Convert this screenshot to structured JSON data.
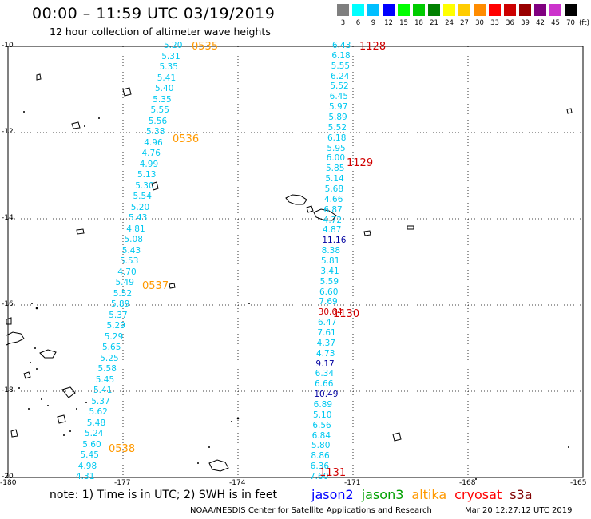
{
  "header": {
    "title": "00:00 – 11:59 UTC 03/19/2019",
    "subtitle": "12 hour collection of altimeter wave heights"
  },
  "legend": {
    "unit": "(ft)",
    "bins": [
      {
        "label": "3",
        "color": "#7f7f7f"
      },
      {
        "label": "6",
        "color": "#00ffff"
      },
      {
        "label": "9",
        "color": "#00bfff"
      },
      {
        "label": "12",
        "color": "#0000ff"
      },
      {
        "label": "15",
        "color": "#00ff00"
      },
      {
        "label": "18",
        "color": "#00cc00"
      },
      {
        "label": "21",
        "color": "#008000"
      },
      {
        "label": "24",
        "color": "#ffff00"
      },
      {
        "label": "27",
        "color": "#ffcc00"
      },
      {
        "label": "30",
        "color": "#ff8c00"
      },
      {
        "label": "33",
        "color": "#ff0000"
      },
      {
        "label": "36",
        "color": "#cc0000"
      },
      {
        "label": "39",
        "color": "#990000"
      },
      {
        "label": "42",
        "color": "#800080"
      },
      {
        "label": "45",
        "color": "#cc33cc"
      },
      {
        "label": "70",
        "color": "#000000"
      }
    ]
  },
  "map": {
    "lat_labels": [
      "-10",
      "-12",
      "-14",
      "-16",
      "-18",
      "-20"
    ],
    "lon_labels": [
      "-180",
      "-177",
      "-174",
      "-171",
      "-168",
      "-165"
    ]
  },
  "colors": {
    "cyan": "#00c8f0",
    "navy": "#0000a0",
    "red": "#d00000",
    "orange": "#ff9900"
  },
  "tracks": [
    {
      "satellite": "altika",
      "time_color": "#ff9900",
      "times": [
        "0535",
        "0536",
        "0537",
        "0538"
      ],
      "swh": [
        "5.20",
        "5.31",
        "5.35",
        "5.41",
        "5.40",
        "5.35",
        "5.55",
        "5.56",
        "5.38",
        "4.96",
        "4.76",
        "4.99",
        "5.13",
        "5.30",
        "5.54",
        "5.20",
        "5.43",
        "4.81",
        "5.08",
        "5.43",
        "5.53",
        "4.70",
        "5.49",
        "5.52",
        "5.89",
        "5.37",
        "5.29",
        "5.29",
        "5.65",
        "5.25",
        "5.58",
        "5.45",
        "5.41",
        "5.37",
        "5.62",
        "5.48",
        "5.24",
        "5.60",
        "5.45",
        "4.98",
        "4.31"
      ]
    },
    {
      "satellite": "cryosat",
      "time_color": "#d00000",
      "times": [
        "1128",
        "1129",
        "1130",
        "1131"
      ],
      "swh": [
        "6.43",
        "6.18",
        "5.55",
        "6.24",
        "5.52",
        "6.45",
        "5.97",
        "5.89",
        "5.52",
        "6.18",
        "5.95",
        "6.00",
        "5.85",
        "5.14",
        "5.68",
        "4.66",
        "6.87",
        "4.72",
        "4.87",
        "11.16",
        "8.38",
        "5.81",
        "3.41",
        "5.59",
        "6.60",
        "7.69",
        "30.64",
        "6.47",
        "7.61",
        "4.37",
        "4.73",
        "9.17",
        "6.34",
        "6.66",
        "10.49",
        "6.89",
        "5.10",
        "6.56",
        "6.84",
        "5.80",
        "8.86",
        "6.36",
        "7.60"
      ]
    }
  ],
  "footer": {
    "note": "note:  1) Time is in UTC; 2) SWH is in feet",
    "satellites": [
      {
        "name": "jason2",
        "color": "#0000ff"
      },
      {
        "name": "jason3",
        "color": "#00a000"
      },
      {
        "name": "altika",
        "color": "#ff9900"
      },
      {
        "name": "cryosat",
        "color": "#ff0000"
      },
      {
        "name": "s3a",
        "color": "#800000"
      }
    ],
    "credit": "NOAA/NESDIS Center for Satellite Applications and Research",
    "timestamp": "Mar 20 12:27:12 UTC 2019"
  }
}
